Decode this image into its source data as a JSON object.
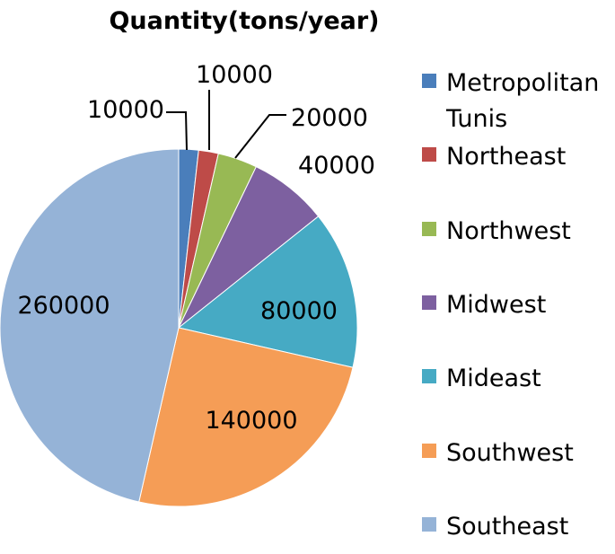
{
  "chart_data": {
    "type": "pie",
    "title": "Quantity(tons/year)",
    "legend_position": "right",
    "categories": [
      "Metropolitan Tunis",
      "Northeast",
      "Northwest",
      "Midwest",
      "Mideast",
      "Southwest",
      "Southeast"
    ],
    "legend_lines": [
      [
        "Metropolitan",
        "Tunis"
      ],
      [
        "Northeast"
      ],
      [
        "Northwest"
      ],
      [
        "Midwest"
      ],
      [
        "Mideast"
      ],
      [
        "Southwest"
      ],
      [
        "Southeast"
      ]
    ],
    "values": [
      10000,
      10000,
      20000,
      40000,
      80000,
      140000,
      260000
    ],
    "data_labels": [
      "10000",
      "10000",
      "20000",
      "40000",
      "80000",
      "140000",
      "260000"
    ],
    "colors": [
      "#4a7ebb",
      "#be4b48",
      "#98b954",
      "#7d60a0",
      "#46aac4",
      "#f59d56",
      "#95b3d7"
    ]
  }
}
